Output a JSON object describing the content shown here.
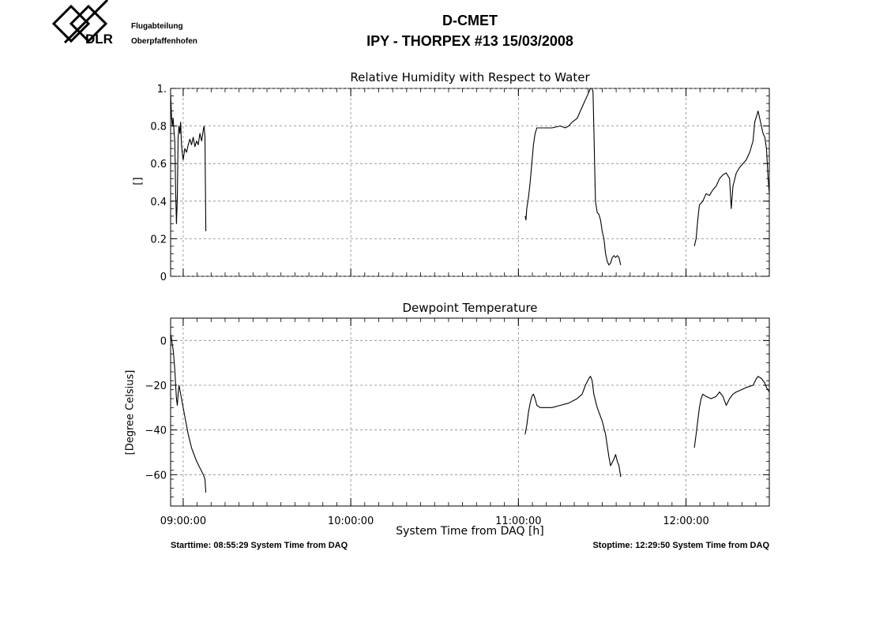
{
  "header": {
    "org_line1": "Flugabteilung",
    "org_line2": "Oberpfaffenhofen",
    "logo_text": "DLR",
    "title": "D-CMET",
    "subtitle": "IPY - THORPEX #13   15/03/2008"
  },
  "footer": {
    "start": "Starttime: 08:55:29 System Time from DAQ",
    "stop": "Stoptime: 12:29:50 System Time from DAQ"
  },
  "colors": {
    "line": "#000000",
    "grid": "#888888",
    "background": "#ffffff"
  },
  "chart_data": [
    {
      "type": "line",
      "title": "Relative Humidity with Respect to Water",
      "ylabel": "[]",
      "xlabel": "",
      "x_unit": "hours",
      "xlim": [
        8.925,
        12.497
      ],
      "ylim": [
        0,
        1.0
      ],
      "yticks": [
        0,
        0.2,
        0.4,
        0.6,
        0.8,
        1
      ],
      "ytick_labels": [
        "0",
        "0.2",
        "0.4",
        "0.6",
        "0.8",
        "1."
      ],
      "xticks": [
        9,
        10,
        11,
        12
      ],
      "grid": true,
      "segments": [
        [
          [
            8.925,
            0.97
          ],
          [
            8.93,
            0.86
          ],
          [
            8.935,
            0.8
          ],
          [
            8.94,
            0.84
          ],
          [
            8.945,
            0.78
          ],
          [
            8.95,
            0.72
          ],
          [
            8.955,
            0.45
          ],
          [
            8.96,
            0.28
          ],
          [
            8.965,
            0.42
          ],
          [
            8.97,
            0.74
          ],
          [
            8.975,
            0.8
          ],
          [
            8.98,
            0.76
          ],
          [
            8.985,
            0.82
          ],
          [
            8.99,
            0.7
          ],
          [
            8.995,
            0.65
          ],
          [
            9.0,
            0.62
          ],
          [
            9.01,
            0.68
          ],
          [
            9.02,
            0.66
          ],
          [
            9.03,
            0.7
          ],
          [
            9.04,
            0.73
          ],
          [
            9.05,
            0.7
          ],
          [
            9.06,
            0.74
          ],
          [
            9.07,
            0.69
          ],
          [
            9.08,
            0.72
          ],
          [
            9.09,
            0.7
          ],
          [
            9.1,
            0.76
          ],
          [
            9.11,
            0.72
          ],
          [
            9.12,
            0.78
          ],
          [
            9.125,
            0.8
          ],
          [
            9.13,
            0.74
          ],
          [
            9.135,
            0.24
          ]
        ],
        [
          [
            11.04,
            0.32
          ],
          [
            11.045,
            0.3
          ],
          [
            11.05,
            0.36
          ],
          [
            11.06,
            0.42
          ],
          [
            11.07,
            0.5
          ],
          [
            11.08,
            0.6
          ],
          [
            11.09,
            0.7
          ],
          [
            11.1,
            0.76
          ],
          [
            11.11,
            0.79
          ],
          [
            11.12,
            0.79
          ],
          [
            11.15,
            0.79
          ],
          [
            11.2,
            0.79
          ],
          [
            11.25,
            0.8
          ],
          [
            11.28,
            0.79
          ],
          [
            11.3,
            0.8
          ],
          [
            11.32,
            0.82
          ],
          [
            11.35,
            0.84
          ],
          [
            11.37,
            0.88
          ],
          [
            11.4,
            0.94
          ],
          [
            11.42,
            0.98
          ],
          [
            11.43,
            1.0
          ],
          [
            11.44,
            1.0
          ],
          [
            11.445,
            0.98
          ],
          [
            11.45,
            0.8
          ],
          [
            11.455,
            0.58
          ],
          [
            11.46,
            0.4
          ],
          [
            11.47,
            0.34
          ],
          [
            11.48,
            0.33
          ],
          [
            11.49,
            0.3
          ],
          [
            11.5,
            0.24
          ],
          [
            11.51,
            0.2
          ],
          [
            11.52,
            0.12
          ],
          [
            11.53,
            0.08
          ],
          [
            11.54,
            0.06
          ],
          [
            11.55,
            0.07
          ],
          [
            11.56,
            0.1
          ],
          [
            11.57,
            0.11
          ],
          [
            11.58,
            0.1
          ],
          [
            11.59,
            0.11
          ],
          [
            11.6,
            0.1
          ],
          [
            11.61,
            0.06
          ]
        ],
        [
          [
            12.05,
            0.16
          ],
          [
            12.06,
            0.2
          ],
          [
            12.07,
            0.3
          ],
          [
            12.08,
            0.38
          ],
          [
            12.1,
            0.4
          ],
          [
            12.12,
            0.44
          ],
          [
            12.14,
            0.43
          ],
          [
            12.16,
            0.46
          ],
          [
            12.18,
            0.48
          ],
          [
            12.2,
            0.52
          ],
          [
            12.22,
            0.54
          ],
          [
            12.24,
            0.55
          ],
          [
            12.26,
            0.52
          ],
          [
            12.27,
            0.36
          ],
          [
            12.28,
            0.48
          ],
          [
            12.3,
            0.55
          ],
          [
            12.32,
            0.58
          ],
          [
            12.34,
            0.6
          ],
          [
            12.36,
            0.62
          ],
          [
            12.38,
            0.66
          ],
          [
            12.4,
            0.72
          ],
          [
            12.41,
            0.82
          ],
          [
            12.42,
            0.85
          ],
          [
            12.43,
            0.88
          ],
          [
            12.44,
            0.84
          ],
          [
            12.45,
            0.8
          ],
          [
            12.46,
            0.76
          ],
          [
            12.47,
            0.74
          ],
          [
            12.48,
            0.68
          ],
          [
            12.49,
            0.52
          ],
          [
            12.497,
            0.44
          ]
        ]
      ]
    },
    {
      "type": "line",
      "title": "Dewpoint Temperature",
      "ylabel": "[Degree Celsius]",
      "xlabel": "System Time from DAQ [h]",
      "x_unit": "hours",
      "xlim": [
        8.925,
        12.497
      ],
      "ylim": [
        -74,
        10
      ],
      "yticks": [
        0,
        -20,
        -40,
        -60
      ],
      "ytick_labels": [
        "0",
        "−20",
        "−40",
        "−60"
      ],
      "xticks": [
        9,
        10,
        11,
        12
      ],
      "xtick_labels": [
        "09:00:00",
        "10:00:00",
        "11:00:00",
        "12:00:00"
      ],
      "grid": true,
      "segments": [
        [
          [
            8.925,
            3
          ],
          [
            8.93,
            1
          ],
          [
            8.935,
            -2
          ],
          [
            8.94,
            -4
          ],
          [
            8.945,
            -8
          ],
          [
            8.95,
            -13
          ],
          [
            8.955,
            -20
          ],
          [
            8.96,
            -26
          ],
          [
            8.965,
            -29
          ],
          [
            8.97,
            -24
          ],
          [
            8.975,
            -20
          ],
          [
            8.98,
            -22
          ],
          [
            8.99,
            -26
          ],
          [
            9.0,
            -30
          ],
          [
            9.01,
            -34
          ],
          [
            9.02,
            -38
          ],
          [
            9.03,
            -42
          ],
          [
            9.04,
            -45
          ],
          [
            9.05,
            -48
          ],
          [
            9.06,
            -50
          ],
          [
            9.08,
            -54
          ],
          [
            9.1,
            -57
          ],
          [
            9.12,
            -60
          ],
          [
            9.13,
            -62
          ],
          [
            9.135,
            -68
          ]
        ],
        [
          [
            11.04,
            -42
          ],
          [
            11.05,
            -38
          ],
          [
            11.06,
            -32
          ],
          [
            11.07,
            -28
          ],
          [
            11.08,
            -25
          ],
          [
            11.09,
            -24
          ],
          [
            11.1,
            -26
          ],
          [
            11.11,
            -29
          ],
          [
            11.13,
            -30
          ],
          [
            11.16,
            -30
          ],
          [
            11.2,
            -30
          ],
          [
            11.25,
            -29
          ],
          [
            11.3,
            -28
          ],
          [
            11.35,
            -26
          ],
          [
            11.38,
            -24
          ],
          [
            11.4,
            -20
          ],
          [
            11.42,
            -17
          ],
          [
            11.43,
            -16
          ],
          [
            11.44,
            -18
          ],
          [
            11.45,
            -24
          ],
          [
            11.47,
            -30
          ],
          [
            11.5,
            -36
          ],
          [
            11.52,
            -42
          ],
          [
            11.54,
            -52
          ],
          [
            11.55,
            -56
          ],
          [
            11.57,
            -53
          ],
          [
            11.58,
            -51
          ],
          [
            11.59,
            -54
          ],
          [
            11.6,
            -56
          ],
          [
            11.61,
            -61
          ]
        ],
        [
          [
            12.05,
            -48
          ],
          [
            12.06,
            -42
          ],
          [
            12.07,
            -36
          ],
          [
            12.08,
            -30
          ],
          [
            12.09,
            -26
          ],
          [
            12.1,
            -24
          ],
          [
            12.12,
            -25
          ],
          [
            12.15,
            -26
          ],
          [
            12.18,
            -25
          ],
          [
            12.2,
            -23
          ],
          [
            12.22,
            -25
          ],
          [
            12.24,
            -29
          ],
          [
            12.26,
            -26
          ],
          [
            12.28,
            -24
          ],
          [
            12.3,
            -23
          ],
          [
            12.33,
            -22
          ],
          [
            12.36,
            -21
          ],
          [
            12.4,
            -20
          ],
          [
            12.42,
            -17
          ],
          [
            12.43,
            -16
          ],
          [
            12.45,
            -17
          ],
          [
            12.47,
            -19
          ],
          [
            12.48,
            -21
          ],
          [
            12.497,
            -23
          ]
        ]
      ]
    }
  ]
}
